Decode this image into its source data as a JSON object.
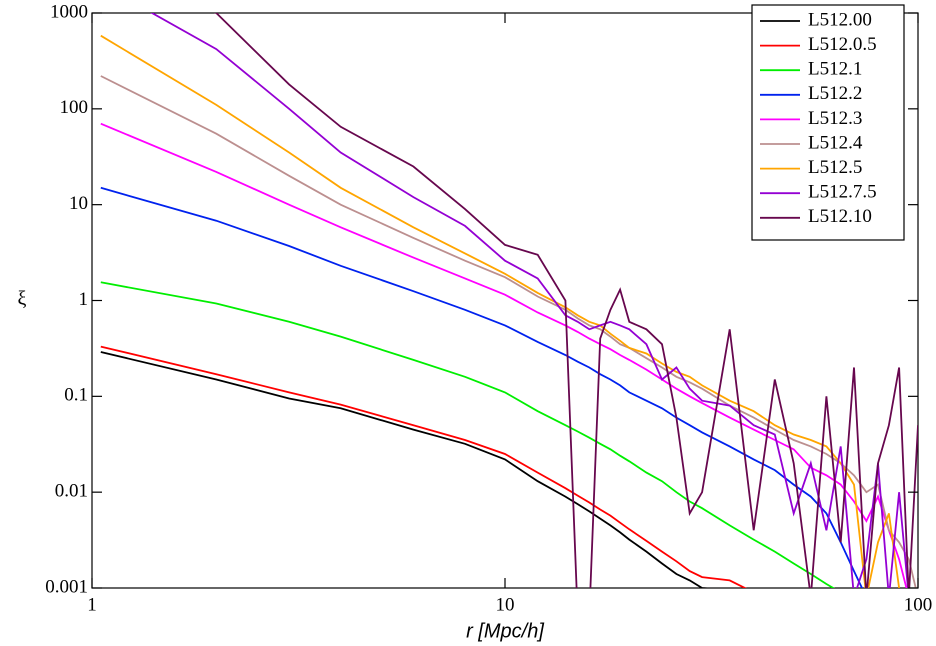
{
  "chart_data": {
    "type": "line",
    "x_label": "r [Mpc/h]",
    "y_label": "ξ",
    "x_log": true,
    "y_log": true,
    "legend": "top-right",
    "xlim": [
      1,
      100
    ],
    "ylim": [
      0.001,
      1000
    ],
    "xticks": [
      1,
      10,
      100
    ],
    "yticks": [
      0.001,
      0.01,
      0.1,
      1,
      10,
      100,
      1000
    ],
    "x": [
      1.05,
      2,
      3,
      4,
      6,
      8,
      10,
      12,
      14,
      15,
      16,
      17,
      18,
      19,
      20,
      22,
      24,
      26,
      28,
      30,
      35,
      40,
      45,
      50,
      55,
      60,
      65,
      70,
      75,
      80,
      85,
      90,
      95,
      100
    ],
    "series": [
      {
        "name": "L512.00",
        "color": "#000000",
        "values": [
          0.29,
          0.15,
          0.095,
          0.075,
          0.045,
          0.032,
          0.022,
          0.013,
          0.009,
          0.0075,
          0.0063,
          0.0053,
          0.0045,
          0.0038,
          0.0032,
          0.0024,
          0.0018,
          0.0014,
          0.0012,
          0.001,
          0.00095,
          0.0006,
          null,
          null,
          null,
          null,
          null,
          null,
          null,
          null,
          null,
          null,
          null,
          null
        ]
      },
      {
        "name": "L512.0.5",
        "color": "#ff0000",
        "values": [
          0.33,
          0.17,
          0.11,
          0.082,
          0.05,
          0.035,
          0.025,
          0.016,
          0.011,
          0.0092,
          0.0078,
          0.0066,
          0.0057,
          0.0048,
          0.0041,
          0.0031,
          0.0024,
          0.0019,
          0.0015,
          0.0013,
          0.0012,
          0.0009,
          null,
          null,
          null,
          null,
          null,
          null,
          null,
          null,
          null,
          null,
          null,
          null
        ]
      },
      {
        "name": "L512.1",
        "color": "#00ee00",
        "values": [
          1.55,
          0.93,
          0.6,
          0.42,
          0.24,
          0.16,
          0.11,
          0.07,
          0.05,
          0.043,
          0.037,
          0.032,
          0.028,
          0.024,
          0.021,
          0.016,
          0.013,
          0.01,
          0.008,
          0.0068,
          0.0045,
          0.0032,
          0.0024,
          0.0018,
          0.0014,
          0.0011,
          0.0009,
          null,
          null,
          null,
          null,
          null,
          null,
          null
        ]
      },
      {
        "name": "L512.2",
        "color": "#0022ee",
        "values": [
          15,
          6.8,
          3.7,
          2.3,
          1.25,
          0.8,
          0.55,
          0.37,
          0.27,
          0.23,
          0.2,
          0.17,
          0.15,
          0.13,
          0.11,
          0.09,
          0.075,
          0.06,
          0.05,
          0.042,
          0.03,
          0.022,
          0.017,
          0.012,
          0.009,
          0.006,
          0.003,
          0.0015,
          0.0008,
          null,
          null,
          null,
          null,
          null
        ]
      },
      {
        "name": "L512.3",
        "color": "#ff00ff",
        "values": [
          70,
          22,
          10,
          5.8,
          2.8,
          1.7,
          1.15,
          0.75,
          0.55,
          0.47,
          0.4,
          0.35,
          0.31,
          0.27,
          0.24,
          0.19,
          0.15,
          0.12,
          0.1,
          0.085,
          0.06,
          0.045,
          0.035,
          0.028,
          0.018,
          0.015,
          0.012,
          0.008,
          0.005,
          0.009,
          0.004,
          0.002,
          0.0008,
          null
        ]
      },
      {
        "name": "L512.4",
        "color": "#bc8f8f",
        "values": [
          220,
          55,
          20,
          10,
          4.5,
          2.6,
          1.75,
          1.1,
          0.8,
          0.65,
          0.55,
          0.5,
          0.42,
          0.35,
          0.32,
          0.25,
          0.2,
          0.16,
          0.14,
          0.12,
          0.08,
          0.06,
          0.045,
          0.035,
          0.03,
          0.025,
          0.02,
          0.015,
          0.01,
          0.012,
          0.004,
          0.003,
          0.002,
          0.0008
        ]
      },
      {
        "name": "L512.5",
        "color": "#ffa500",
        "values": [
          580,
          110,
          35,
          15,
          5.8,
          3.1,
          1.9,
          1.2,
          0.85,
          0.7,
          0.6,
          0.55,
          0.45,
          0.38,
          0.32,
          0.28,
          0.22,
          0.18,
          0.16,
          0.13,
          0.09,
          0.07,
          0.05,
          0.04,
          0.035,
          0.03,
          0.02,
          0.012,
          0.0008,
          0.003,
          0.006,
          0.001,
          null,
          null
        ]
      },
      {
        "name": "L512.7.5",
        "color": "#9400d3",
        "values": [
          2000,
          420,
          100,
          35,
          12,
          6,
          2.6,
          1.7,
          0.7,
          0.6,
          0.5,
          0.55,
          0.6,
          0.55,
          0.5,
          0.35,
          0.15,
          0.2,
          0.12,
          0.09,
          0.08,
          0.05,
          0.04,
          0.006,
          0.02,
          0.004,
          0.03,
          0.0008,
          0.002,
          0.02,
          0.0008,
          0.01,
          0.0008,
          0.001
        ]
      },
      {
        "name": "L512.10",
        "color": "#67074e",
        "values": [
          3000,
          1000,
          180,
          65,
          25,
          9,
          3.8,
          3,
          1,
          0.0005,
          0.0005,
          0.4,
          0.8,
          1.3,
          0.6,
          0.5,
          0.35,
          0.06,
          0.006,
          0.01,
          0.5,
          0.004,
          0.15,
          0.02,
          0.0008,
          0.1,
          0.003,
          0.2,
          0.0008,
          0.02,
          0.05,
          0.2,
          0.0008,
          0.05
        ]
      }
    ]
  }
}
